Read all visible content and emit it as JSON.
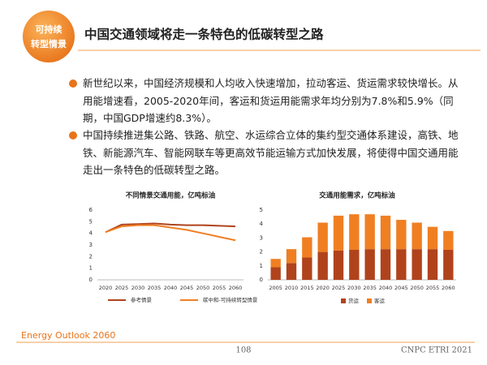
{
  "header": {
    "badge": [
      "可持续",
      "转型情景"
    ],
    "title": "中国交通领域将走一条特色的低碳转型之路"
  },
  "bullets": [
    "新世纪以来，中国经济规模和人均收入快速增加，拉动客运、货运需求较快增长。从用能增速看，2005-2020年间，客运和货运用能需求年均分别为7.8%和5.9%（同期，中国GDP增速约8.3%）。",
    "中国持续推进集公路、铁路、航空、水运综合立体的集约型交通体系建设，高铁、地铁、新能源汽车、智能网联车等更高效节能运输方式加快发展，将使得中国交通用能走出一条特色的低碳转型之路。"
  ],
  "chart_data": [
    {
      "type": "line",
      "title": "不同情景交通用能，亿吨标油",
      "categories": [
        "2020",
        "2025",
        "2030",
        "2035",
        "2040",
        "2045",
        "2050",
        "2055",
        "2060"
      ],
      "series": [
        {
          "name": "参考情景",
          "color": "#b0431c",
          "values": [
            4.1,
            4.75,
            4.8,
            4.85,
            4.75,
            4.7,
            4.7,
            4.65,
            4.6
          ]
        },
        {
          "name": "碳中和-可持续转型情景",
          "color": "#f07f22",
          "values": [
            4.1,
            4.6,
            4.7,
            4.7,
            4.5,
            4.3,
            4.0,
            3.7,
            3.4
          ]
        }
      ],
      "ylim": [
        0,
        6
      ],
      "yticks": [
        0,
        1,
        2,
        3,
        4,
        5,
        6
      ],
      "grid": false
    },
    {
      "type": "stacked_bar",
      "title": "交通用能需求，亿吨标油",
      "categories": [
        "2005",
        "2010",
        "2015",
        "2020",
        "2025",
        "2030",
        "2035",
        "2040",
        "2045",
        "2050",
        "2055",
        "2060"
      ],
      "series": [
        {
          "name": "货运",
          "color": "#b0431c",
          "values": [
            0.9,
            1.2,
            1.6,
            2.0,
            2.1,
            2.15,
            2.2,
            2.2,
            2.2,
            2.2,
            2.2,
            2.15
          ]
        },
        {
          "name": "客运",
          "color": "#f07f22",
          "values": [
            0.6,
            1.0,
            1.45,
            2.1,
            2.5,
            2.55,
            2.5,
            2.4,
            2.1,
            1.9,
            1.6,
            1.35
          ]
        }
      ],
      "ylim": [
        0,
        5
      ],
      "yticks": [
        0,
        1,
        2,
        3,
        4,
        5
      ],
      "grid": false
    }
  ],
  "footer": {
    "left": "Energy Outlook 2060",
    "page": "108",
    "right": "CNPC ETRI 2021"
  }
}
